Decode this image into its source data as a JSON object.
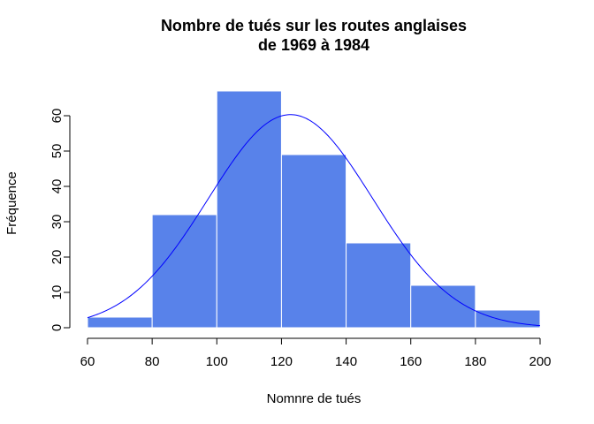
{
  "chart_data": {
    "type": "bar",
    "title_line1": "Nombre de tués sur les routes anglaises",
    "title_line2": "de 1969 à 1984",
    "xlabel": "Nomnre de tués",
    "ylabel": "Fréquence",
    "bins": [
      [
        60,
        80
      ],
      [
        80,
        100
      ],
      [
        100,
        120
      ],
      [
        120,
        140
      ],
      [
        140,
        160
      ],
      [
        160,
        180
      ],
      [
        180,
        200
      ]
    ],
    "values": [
      3,
      32,
      67,
      49,
      24,
      12,
      5
    ],
    "xlim": [
      60,
      200
    ],
    "ylim": [
      0,
      70
    ],
    "xticks": [
      60,
      80,
      100,
      120,
      140,
      160,
      180,
      200
    ],
    "yticks": [
      0,
      10,
      20,
      30,
      40,
      50,
      60
    ],
    "bar_color": "#5882EA",
    "bar_border_color": "#ffffff",
    "curve_color": "#0000FF",
    "curve": {
      "kind": "normal",
      "mean": 122.8,
      "sd": 25.4,
      "total": 192,
      "binwidth": 20
    }
  }
}
